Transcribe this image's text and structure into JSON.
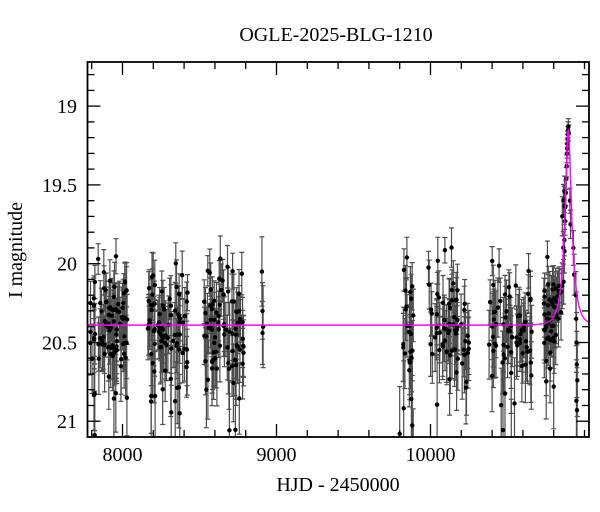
{
  "figure_title": "OGLE-2025-BLG-1210",
  "colors": {
    "background": "#ffffff",
    "axis": "#000000",
    "data_point": "#000000",
    "error_bar": "#4d4d4d",
    "model_curve": "#ff00ff"
  },
  "chart_data": {
    "type": "scatter",
    "title": "OGLE-2025-BLG-1210",
    "xlabel": "HJD - 2450000",
    "ylabel": "I magnitude",
    "xlim": [
      7773,
      11029
    ],
    "ylim": [
      18.72,
      21.1
    ],
    "y_axis_inverted": true,
    "grid": false,
    "legend": null,
    "x_major_ticks": [
      8000,
      9000,
      10000
    ],
    "x_minor_tick_step": 200,
    "y_major_ticks": [
      19,
      19.5,
      20,
      20.5,
      21
    ],
    "y_minor_tick_step": 0.1,
    "baseline_mag": 20.39,
    "model_curve": {
      "type": "point_lens_microlensing",
      "t0": 10895,
      "tE": 45,
      "u0": 0.332,
      "baseline_mag": 20.39,
      "peak_mag": 19.15
    },
    "random_seed": 42,
    "seasons": [
      {
        "name": "season-2017",
        "hjd_range": [
          7783,
          8036
        ],
        "n_points": 88,
        "mag_offset": 0.04,
        "mag_sigma": 0.19,
        "seed": 101
      },
      {
        "name": "season-2018",
        "hjd_range": [
          8153,
          8425
        ],
        "n_points": 82,
        "mag_offset": 0.04,
        "mag_sigma": 0.19,
        "seed": 102
      },
      {
        "name": "season-2019",
        "hjd_range": [
          8516,
          8789
        ],
        "n_points": 82,
        "mag_offset": 0.03,
        "mag_sigma": 0.2,
        "seed": 103
      },
      {
        "name": "season-2022",
        "hjd_range": [
          9820,
          9895
        ],
        "n_points": 26,
        "mag_offset": 0.05,
        "mag_sigma": 0.26,
        "seed": 104
      },
      {
        "name": "season-2023",
        "hjd_range": [
          9984,
          10256
        ],
        "n_points": 66,
        "mag_offset": 0.03,
        "mag_sigma": 0.19,
        "seed": 105
      },
      {
        "name": "season-2024",
        "hjd_range": [
          10373,
          10659
        ],
        "n_points": 68,
        "mag_offset": 0.03,
        "mag_sigma": 0.19,
        "seed": 106
      },
      {
        "name": "season-2025",
        "hjd_range": [
          10730,
          10872
        ],
        "n_points": 58,
        "mag_offset": 0.03,
        "mag_sigma": 0.2,
        "seed": 107
      }
    ],
    "isolated_points": [
      {
        "hjd": 8905,
        "mag": 20.05,
        "err": 0.22
      },
      {
        "hjd": 8909,
        "mag": 20.3,
        "err": 0.18
      },
      {
        "hjd": 8909,
        "mag": 20.44,
        "err": 0.2
      },
      {
        "hjd": 8913,
        "mag": 20.4,
        "err": 0.26
      },
      {
        "hjd": 9800,
        "mag": 21.08,
        "err": 0.3
      }
    ],
    "event_points": [
      {
        "hjd": 10869.0,
        "mag": 19.85,
        "err": 0.1
      },
      {
        "hjd": 10873.0,
        "mag": 19.73,
        "err": 0.09
      },
      {
        "hjd": 10876.0,
        "mag": 19.64,
        "err": 0.09
      },
      {
        "hjd": 10879.0,
        "mag": 19.55,
        "err": 0.08
      },
      {
        "hjd": 10881.5,
        "mag": 19.46,
        "err": 0.07
      },
      {
        "hjd": 10884.0,
        "mag": 19.38,
        "err": 0.07
      },
      {
        "hjd": 10886.0,
        "mag": 19.3,
        "err": 0.06
      },
      {
        "hjd": 10887.5,
        "mag": 19.27,
        "err": 0.06
      },
      {
        "hjd": 10889.0,
        "mag": 19.24,
        "err": 0.06
      },
      {
        "hjd": 10890.5,
        "mag": 19.21,
        "err": 0.05
      },
      {
        "hjd": 10892.0,
        "mag": 19.18,
        "err": 0.05
      },
      {
        "hjd": 10893.5,
        "mag": 19.15,
        "err": 0.05
      },
      {
        "hjd": 10895.0,
        "mag": 19.13,
        "err": 0.05
      },
      {
        "hjd": 10897.0,
        "mag": 19.17,
        "err": 0.05
      },
      {
        "hjd": 10905.0,
        "mag": 19.6,
        "err": 0.08
      },
      {
        "hjd": 10909.0,
        "mag": 19.75,
        "err": 0.09
      },
      {
        "hjd": 10928.0,
        "mag": 19.9,
        "err": 0.11
      },
      {
        "hjd": 10933.0,
        "mag": 20.07,
        "err": 0.13
      },
      {
        "hjd": 10944.0,
        "mag": 20.2,
        "err": 0.15
      },
      {
        "hjd": 10946.0,
        "mag": 20.35,
        "err": 0.17
      },
      {
        "hjd": 10947.0,
        "mag": 20.87,
        "err": 0.26
      },
      {
        "hjd": 10948.0,
        "mag": 20.5,
        "err": 0.19
      },
      {
        "hjd": 10949.5,
        "mag": 20.64,
        "err": 0.21
      },
      {
        "hjd": 10951.0,
        "mag": 20.93,
        "err": 0.27
      },
      {
        "hjd": 10953.0,
        "mag": 20.74,
        "err": 0.23
      }
    ]
  }
}
